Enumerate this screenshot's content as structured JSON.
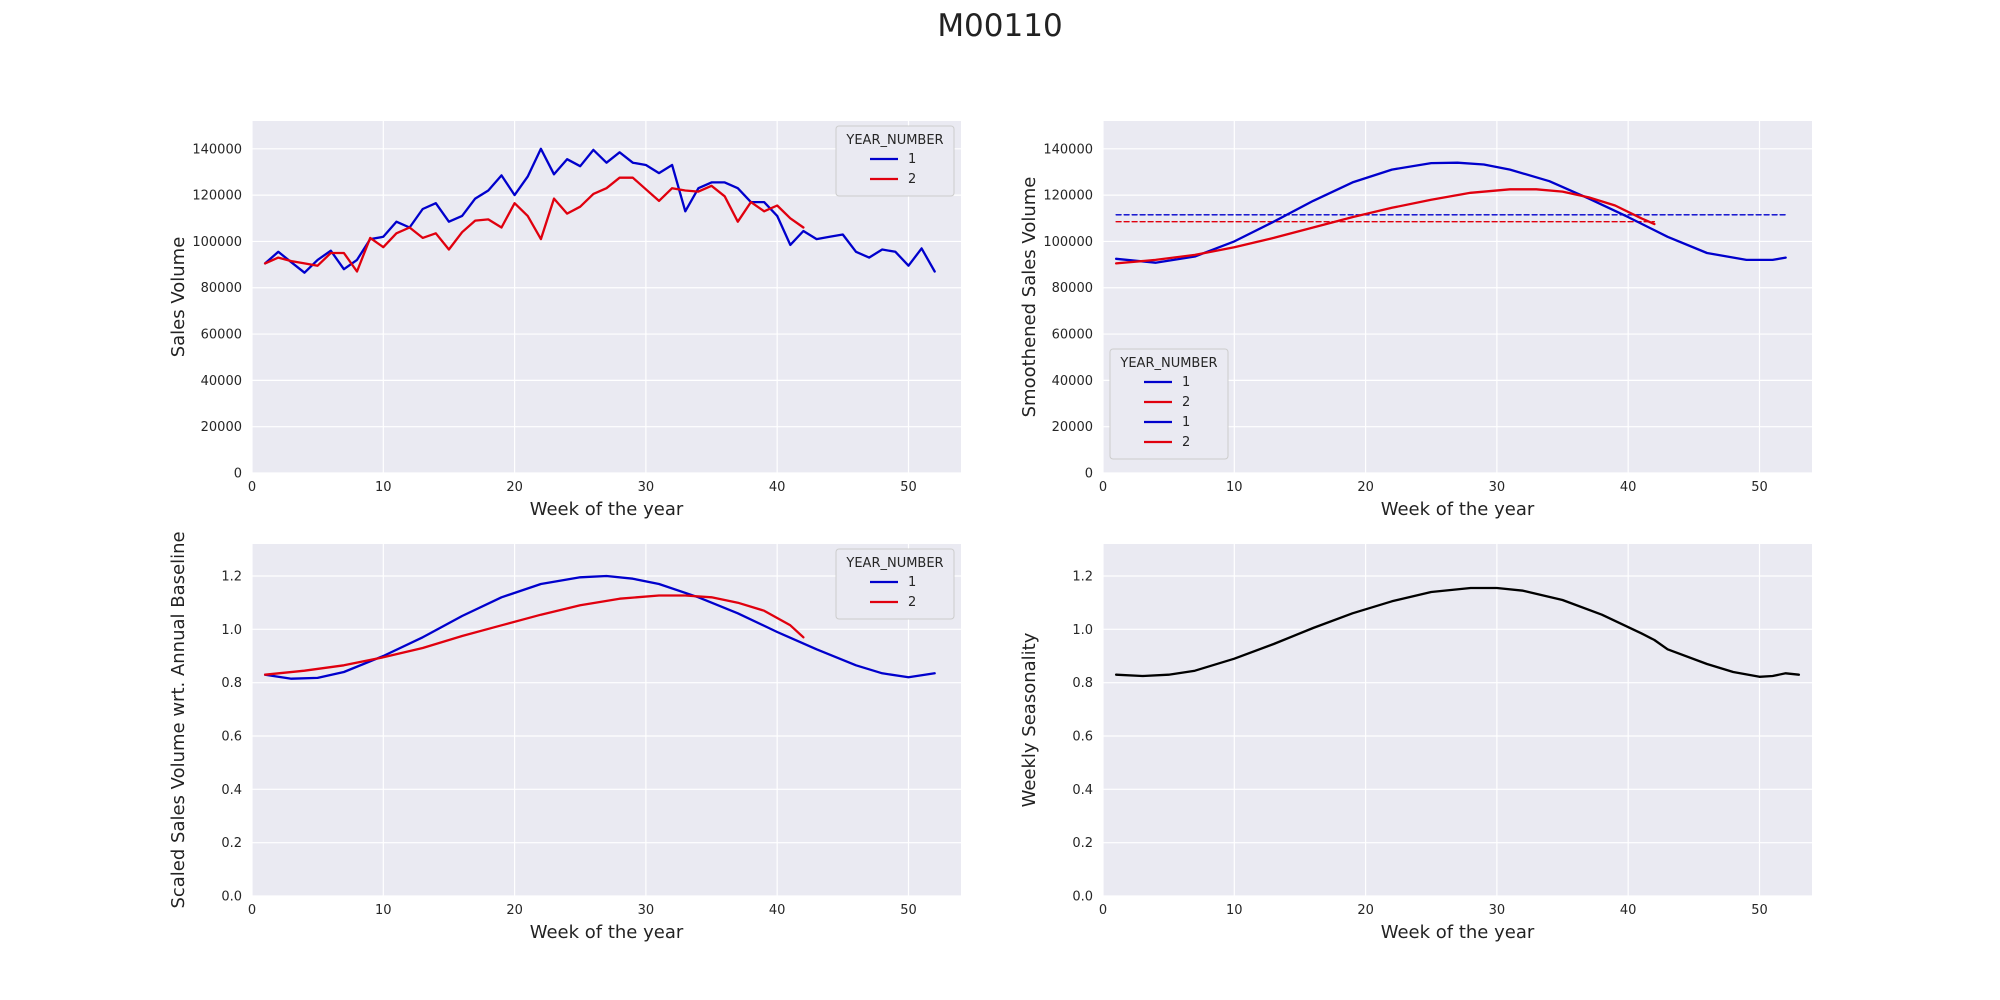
{
  "figure_title": "M00110",
  "colors": {
    "year1": "#0000cc",
    "year2": "#e0000e",
    "seasonality": "#000000",
    "plot_bg": "#eaeaf2",
    "grid": "#ffffff"
  },
  "chart_data": [
    {
      "type": "line",
      "xlabel": "Week of the year",
      "ylabel": "Sales Volume",
      "xlim": [
        0,
        54
      ],
      "ylim": [
        0,
        152000
      ],
      "xticks": [
        0,
        10,
        20,
        30,
        40,
        50
      ],
      "yticks": [
        0,
        20000,
        40000,
        60000,
        80000,
        100000,
        120000,
        140000
      ],
      "grid": true,
      "legend": {
        "title": "YEAR_NUMBER",
        "position": "top-right"
      },
      "series": [
        {
          "name": "1",
          "color": "#0000cc",
          "style": "solid",
          "x": [
            1,
            2,
            3,
            4,
            5,
            6,
            7,
            8,
            9,
            10,
            11,
            12,
            13,
            14,
            15,
            16,
            17,
            18,
            19,
            20,
            21,
            22,
            23,
            24,
            25,
            26,
            27,
            28,
            29,
            30,
            31,
            32,
            33,
            34,
            35,
            36,
            37,
            38,
            39,
            40,
            41,
            42,
            43,
            44,
            45,
            46,
            47,
            48,
            49,
            50,
            51,
            52
          ],
          "values": [
            90500,
            95500,
            91000,
            86500,
            92000,
            96000,
            88000,
            92000,
            101000,
            102000,
            108500,
            106000,
            114000,
            116500,
            108500,
            111000,
            118500,
            122000,
            128500,
            120000,
            128000,
            140000,
            129000,
            135500,
            132500,
            139500,
            134000,
            138500,
            134000,
            133000,
            129500,
            133000,
            113000,
            123000,
            125500,
            125500,
            123000,
            117000,
            117000,
            111000,
            98500,
            104500,
            101000,
            102000,
            103000,
            95500,
            93000,
            96500,
            95500,
            89500,
            97000,
            87000
          ]
        },
        {
          "name": "2",
          "color": "#e0000e",
          "style": "solid",
          "x": [
            1,
            2,
            3,
            4,
            5,
            6,
            7,
            8,
            9,
            10,
            11,
            12,
            13,
            14,
            15,
            16,
            17,
            18,
            19,
            20,
            21,
            22,
            23,
            24,
            25,
            26,
            27,
            28,
            29,
            30,
            31,
            32,
            33,
            34,
            35,
            36,
            37,
            38,
            39,
            40,
            41,
            42
          ],
          "values": [
            90500,
            93000,
            91500,
            90500,
            89500,
            95000,
            95000,
            87000,
            101500,
            97500,
            103500,
            106000,
            101500,
            103500,
            96500,
            104000,
            109000,
            109500,
            106000,
            116500,
            111000,
            101000,
            118500,
            112000,
            115000,
            120500,
            123000,
            127500,
            127500,
            122500,
            117500,
            123000,
            122000,
            121500,
            124000,
            119500,
            108500,
            117000,
            113000,
            115500,
            110000,
            106000
          ]
        }
      ]
    },
    {
      "type": "line",
      "xlabel": "Week of the year",
      "ylabel": "Smoothened Sales Volume",
      "xlim": [
        0,
        54
      ],
      "ylim": [
        0,
        152000
      ],
      "xticks": [
        0,
        10,
        20,
        30,
        40,
        50
      ],
      "yticks": [
        0,
        20000,
        40000,
        60000,
        80000,
        100000,
        120000,
        140000
      ],
      "grid": true,
      "legend": {
        "title": "YEAR_NUMBER",
        "position": "bottom-left",
        "entries": [
          "1",
          "2",
          "1",
          "2"
        ]
      },
      "series": [
        {
          "name": "1",
          "color": "#0000cc",
          "style": "dashed",
          "x": [
            1,
            52
          ],
          "values": [
            111500,
            111500
          ]
        },
        {
          "name": "2",
          "color": "#e0000e",
          "style": "dashed",
          "x": [
            1,
            42
          ],
          "values": [
            108500,
            108500
          ]
        },
        {
          "name": "1",
          "color": "#0000cc",
          "style": "solid",
          "x": [
            1,
            4,
            7,
            10,
            13,
            16,
            19,
            22,
            25,
            27,
            29,
            31,
            34,
            37,
            40,
            43,
            46,
            49,
            51,
            52
          ],
          "values": [
            92500,
            90800,
            93500,
            100000,
            108500,
            117500,
            125500,
            131000,
            133800,
            134000,
            133200,
            131000,
            126000,
            118500,
            110500,
            102000,
            95000,
            92000,
            92000,
            93000
          ]
        },
        {
          "name": "2",
          "color": "#e0000e",
          "style": "solid",
          "x": [
            1,
            4,
            7,
            10,
            13,
            16,
            19,
            22,
            25,
            28,
            31,
            33,
            35,
            37,
            39,
            41,
            42
          ],
          "values": [
            90500,
            92000,
            94200,
            97500,
            101500,
            106000,
            110500,
            114500,
            118000,
            121000,
            122500,
            122500,
            121500,
            119000,
            115500,
            110000,
            107500
          ]
        }
      ]
    },
    {
      "type": "line",
      "xlabel": "Week of the year",
      "ylabel": "Scaled Sales Volume wrt. Annual Baseline",
      "xlim": [
        0,
        54
      ],
      "ylim": [
        0,
        1.32
      ],
      "xticks": [
        0,
        10,
        20,
        30,
        40,
        50
      ],
      "yticks": [
        0.0,
        0.2,
        0.4,
        0.6,
        0.8,
        1.0,
        1.2
      ],
      "ytick_labels": [
        "0.0",
        "0.2",
        "0.4",
        "0.6",
        "0.8",
        "1.0",
        "1.2"
      ],
      "grid": true,
      "legend": {
        "title": "YEAR_NUMBER",
        "position": "top-right"
      },
      "series": [
        {
          "name": "1",
          "color": "#0000cc",
          "style": "solid",
          "x": [
            1,
            3,
            5,
            7,
            10,
            13,
            16,
            19,
            22,
            25,
            27,
            29,
            31,
            34,
            37,
            40,
            43,
            46,
            48,
            50,
            52
          ],
          "values": [
            0.83,
            0.815,
            0.818,
            0.84,
            0.9,
            0.97,
            1.05,
            1.12,
            1.17,
            1.195,
            1.2,
            1.19,
            1.17,
            1.12,
            1.06,
            0.99,
            0.925,
            0.865,
            0.835,
            0.82,
            0.835
          ]
        },
        {
          "name": "2",
          "color": "#e0000e",
          "style": "solid",
          "x": [
            1,
            4,
            7,
            10,
            13,
            16,
            19,
            22,
            25,
            28,
            31,
            33,
            35,
            37,
            39,
            41,
            42
          ],
          "values": [
            0.83,
            0.845,
            0.865,
            0.895,
            0.93,
            0.975,
            1.015,
            1.055,
            1.09,
            1.115,
            1.127,
            1.127,
            1.12,
            1.1,
            1.07,
            1.015,
            0.97
          ]
        }
      ]
    },
    {
      "type": "line",
      "xlabel": "Week of the year",
      "ylabel": "Weekly Seasonality",
      "xlim": [
        0,
        54
      ],
      "ylim": [
        0,
        1.32
      ],
      "xticks": [
        0,
        10,
        20,
        30,
        40,
        50
      ],
      "yticks": [
        0.0,
        0.2,
        0.4,
        0.6,
        0.8,
        1.0,
        1.2
      ],
      "ytick_labels": [
        "0.0",
        "0.2",
        "0.4",
        "0.6",
        "0.8",
        "1.0",
        "1.2"
      ],
      "grid": true,
      "series": [
        {
          "color": "#000000",
          "style": "solid",
          "x": [
            1,
            3,
            5,
            7,
            10,
            13,
            16,
            19,
            22,
            25,
            28,
            30,
            32,
            35,
            38,
            41,
            42,
            43,
            46,
            48,
            50,
            51,
            52,
            53
          ],
          "values": [
            0.83,
            0.825,
            0.83,
            0.845,
            0.89,
            0.945,
            1.005,
            1.06,
            1.105,
            1.14,
            1.155,
            1.155,
            1.145,
            1.11,
            1.055,
            0.985,
            0.96,
            0.925,
            0.87,
            0.84,
            0.822,
            0.825,
            0.835,
            0.83
          ]
        }
      ]
    }
  ]
}
